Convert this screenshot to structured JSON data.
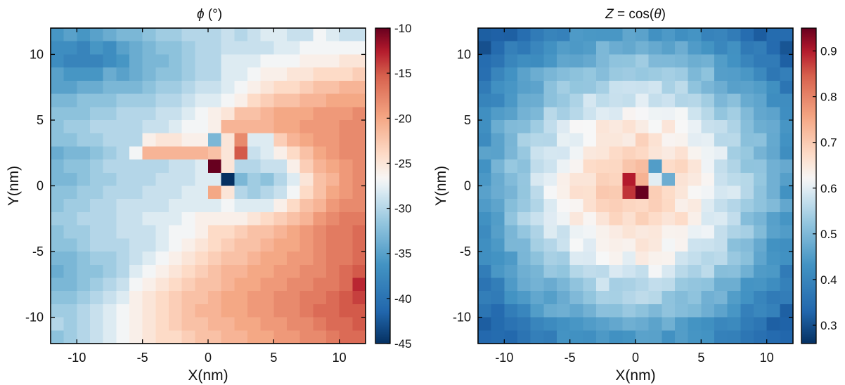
{
  "chart_data": [
    {
      "type": "heatmap",
      "title": "ϕ (°)",
      "title_parts": {
        "symbol": "ϕ",
        "rest": " (°)"
      },
      "xlabel": "X(nm)",
      "ylabel": "Y(nm)",
      "xlim": [
        -12,
        12
      ],
      "ylim": [
        -12,
        12
      ],
      "xticks": [
        -10,
        -5,
        0,
        5,
        10
      ],
      "yticks": [
        -10,
        -5,
        0,
        5,
        10
      ],
      "xtick_labels": [
        "-10",
        "-5",
        "0",
        "5",
        "10"
      ],
      "ytick_labels": [
        "-10",
        "-5",
        "0",
        "5",
        "10"
      ],
      "colorbar": {
        "range": [
          -45,
          -10
        ],
        "ticks": [
          -10,
          -15,
          -20,
          -25,
          -30,
          -35,
          -40,
          -45
        ],
        "tick_labels": [
          "-10",
          "-15",
          "-20",
          "-25",
          "-30",
          "-35",
          "-40",
          "-45"
        ],
        "colormap": "red-white-blue (diverging)"
      },
      "grid": false,
      "x_centers": [
        -11.5,
        -10.5,
        -9.5,
        -8.5,
        -7.5,
        -6.5,
        -5.5,
        -4.5,
        -3.5,
        -2.5,
        -1.5,
        -0.5,
        0.5,
        1.5,
        2.5,
        3.5,
        4.5,
        5.5,
        6.5,
        7.5,
        8.5,
        9.5,
        10.5,
        11.5
      ],
      "y_centers": [
        11.5,
        10.5,
        9.5,
        8.5,
        7.5,
        6.5,
        5.5,
        4.5,
        3.5,
        2.5,
        1.5,
        0.5,
        -0.5,
        -1.5,
        -2.5,
        -3.5,
        -4.5,
        -5.5,
        -6.5,
        -7.5,
        -8.5,
        -9.5,
        -10.5,
        -11.5
      ],
      "values": [
        [
          -36,
          -35,
          -36,
          -35,
          -34,
          -33,
          -33,
          -32,
          -31,
          -31,
          -30,
          -30,
          -30,
          -29,
          -30,
          -29,
          -28,
          -28,
          -29,
          -29,
          -27,
          -28,
          -29,
          -29
        ],
        [
          -37,
          -37,
          -38,
          -36,
          -37,
          -35,
          -34,
          -33,
          -32,
          -32,
          -31,
          -30,
          -30,
          -29,
          -29,
          -29,
          -29,
          -28,
          -28,
          -27,
          -27,
          -27,
          -27,
          -27
        ],
        [
          -37,
          -38,
          -38,
          -38,
          -37,
          -36,
          -34,
          -33,
          -33,
          -32,
          -31,
          -30,
          -30,
          -28,
          -28,
          -28,
          -27,
          -27,
          -27,
          -26,
          -26,
          -26,
          -25,
          -25
        ],
        [
          -35,
          -36,
          -36,
          -36,
          -34,
          -35,
          -34,
          -33,
          -32,
          -32,
          -31,
          -30,
          -30,
          -28,
          -28,
          -27,
          -26,
          -26,
          -25,
          -25,
          -24,
          -24,
          -24,
          -23
        ],
        [
          -35,
          -35,
          -34,
          -34,
          -33,
          -33,
          -33,
          -32,
          -31,
          -31,
          -30,
          -29,
          -29,
          -28,
          -27,
          -26,
          -25,
          -24,
          -24,
          -23,
          -22,
          -22,
          -21,
          -21
        ],
        [
          -33,
          -33,
          -32,
          -32,
          -32,
          -31,
          -31,
          -31,
          -30,
          -30,
          -29,
          -28,
          -28,
          -27,
          -26,
          -24,
          -23,
          -22,
          -22,
          -21,
          -21,
          -20,
          -20,
          -20
        ],
        [
          -32,
          -32,
          -32,
          -31,
          -31,
          -30,
          -30,
          -30,
          -29,
          -29,
          -28,
          -27,
          -26,
          -25,
          -22,
          -22,
          -21,
          -20,
          -20,
          -20,
          -19,
          -19,
          -19,
          -18
        ],
        [
          -32,
          -31,
          -31,
          -30,
          -30,
          -30,
          -30,
          -29,
          -29,
          -28,
          -27,
          -27,
          -26,
          -21,
          -21,
          -21,
          -21,
          -20,
          -20,
          -19,
          -19,
          -19,
          -18,
          -18
        ],
        [
          -32,
          -32,
          -31,
          -31,
          -30,
          -30,
          -30,
          -26,
          -25,
          -25,
          -26,
          -26,
          -33,
          -25,
          -18,
          -28,
          -28,
          -23,
          -21,
          -20,
          -19,
          -19,
          -18,
          -18
        ],
        [
          -34,
          -33,
          -33,
          -32,
          -31,
          -30,
          -27,
          -21,
          -21,
          -21,
          -21,
          -21,
          -22,
          -25,
          -15,
          -29,
          -28,
          -26,
          -24,
          -22,
          -20,
          -19,
          -18,
          -18
        ],
        [
          -33,
          -32,
          -32,
          -31,
          -30,
          -30,
          -30,
          -30,
          -30,
          -29,
          -29,
          -28,
          -10,
          -25,
          -30,
          -30,
          -29,
          -29,
          -26,
          -23,
          -21,
          -20,
          -19,
          -18
        ],
        [
          -33,
          -33,
          -32,
          -31,
          -31,
          -30,
          -30,
          -30,
          -29,
          -29,
          -29,
          -28,
          -28,
          -45,
          -33,
          -31,
          -32,
          -30,
          -28,
          -25,
          -22,
          -21,
          -19,
          -18
        ],
        [
          -32,
          -32,
          -31,
          -31,
          -30,
          -30,
          -30,
          -29,
          -29,
          -29,
          -28,
          -28,
          -20,
          -25,
          -30,
          -31,
          -30,
          -29,
          -27,
          -24,
          -22,
          -20,
          -19,
          -18
        ],
        [
          -32,
          -31,
          -31,
          -30,
          -30,
          -29,
          -29,
          -29,
          -29,
          -28,
          -28,
          -28,
          -28,
          -27,
          -28,
          -28,
          -28,
          -26,
          -24,
          -22,
          -21,
          -19,
          -18,
          -18
        ],
        [
          -31,
          -31,
          -30,
          -30,
          -30,
          -29,
          -29,
          -28,
          -28,
          -28,
          -27,
          -26,
          -26,
          -26,
          -26,
          -25,
          -24,
          -23,
          -22,
          -21,
          -19,
          -18,
          -17,
          -17
        ],
        [
          -32,
          -31,
          -31,
          -30,
          -30,
          -29,
          -29,
          -29,
          -28,
          -27,
          -27,
          -26,
          -24,
          -24,
          -23,
          -22,
          -22,
          -21,
          -20,
          -19,
          -18,
          -17,
          -17,
          -16
        ],
        [
          -32,
          -32,
          -31,
          -30,
          -30,
          -30,
          -29,
          -29,
          -28,
          -27,
          -26,
          -25,
          -24,
          -23,
          -22,
          -22,
          -21,
          -20,
          -20,
          -19,
          -18,
          -17,
          -17,
          -16
        ],
        [
          -33,
          -33,
          -32,
          -31,
          -31,
          -30,
          -29,
          -28,
          -27,
          -26,
          -25,
          -24,
          -23,
          -22,
          -22,
          -21,
          -20,
          -20,
          -19,
          -19,
          -18,
          -17,
          -17,
          -16
        ],
        [
          -34,
          -33,
          -32,
          -32,
          -31,
          -30,
          -28,
          -27,
          -26,
          -25,
          -24,
          -23,
          -22,
          -21,
          -21,
          -20,
          -20,
          -19,
          -19,
          -18,
          -18,
          -17,
          -16,
          -15
        ],
        [
          -33,
          -33,
          -32,
          -31,
          -30,
          -29,
          -27,
          -26,
          -25,
          -24,
          -23,
          -22,
          -22,
          -21,
          -20,
          -20,
          -19,
          -19,
          -18,
          -18,
          -17,
          -17,
          -16,
          -13
        ],
        [
          -32,
          -32,
          -31,
          -30,
          -29,
          -28,
          -26,
          -25,
          -24,
          -23,
          -22,
          -22,
          -21,
          -20,
          -20,
          -19,
          -19,
          -18,
          -18,
          -17,
          -17,
          -16,
          -15,
          -14
        ],
        [
          -31,
          -31,
          -30,
          -29,
          -28,
          -27,
          -26,
          -25,
          -24,
          -23,
          -22,
          -21,
          -21,
          -20,
          -20,
          -19,
          -19,
          -18,
          -18,
          -17,
          -16,
          -16,
          -15,
          -15
        ],
        [
          -30,
          -31,
          -30,
          -29,
          -28,
          -27,
          -26,
          -25,
          -24,
          -23,
          -22,
          -22,
          -21,
          -21,
          -20,
          -20,
          -19,
          -19,
          -18,
          -18,
          -17,
          -16,
          -16,
          -15
        ],
        [
          -32,
          -31,
          -30,
          -29,
          -28,
          -27,
          -26,
          -25,
          -24,
          -24,
          -23,
          -22,
          -22,
          -21,
          -21,
          -20,
          -20,
          -19,
          -19,
          -18,
          -18,
          -17,
          -16,
          -16
        ]
      ]
    },
    {
      "type": "heatmap",
      "title": "Z = cos(θ)",
      "title_parts": {
        "symbol": "Z",
        "mid": " = cos(",
        "symbol2": "θ",
        "rest": ")"
      },
      "xlabel": "X(nm)",
      "ylabel": "Y(nm)",
      "xlim": [
        -12,
        12
      ],
      "ylim": [
        -12,
        12
      ],
      "xticks": [
        -10,
        -5,
        0,
        5,
        10
      ],
      "yticks": [
        -10,
        -5,
        0,
        5,
        10
      ],
      "xtick_labels": [
        "-10",
        "-5",
        "0",
        "5",
        "10"
      ],
      "ytick_labels": [
        "-10",
        "-5",
        "0",
        "5",
        "10"
      ],
      "colorbar": {
        "range": [
          0.26,
          0.95
        ],
        "ticks": [
          0.9,
          0.8,
          0.7,
          0.6,
          0.5,
          0.4,
          0.3
        ],
        "tick_labels": [
          "0.9",
          "0.8",
          "0.7",
          "0.6",
          "0.5",
          "0.4",
          "0.3"
        ],
        "colormap": "red-white-blue (diverging)"
      },
      "grid": false,
      "description_of_pattern": "radially symmetric: ~0.65-0.72 near center, decreasing to ~0.32 at corners; hotspot 0.95 at (-0.5,0.5)-(0.5,-0.5), blue specks at (1.5,1.5) and (2.5,0.5)",
      "center_value": 0.72,
      "edge_value": 0.32,
      "hotspots": [
        {
          "x": -0.5,
          "y": 0.5,
          "value": 0.9
        },
        {
          "x": -0.5,
          "y": -0.5,
          "value": 0.88
        },
        {
          "x": 0.5,
          "y": -0.5,
          "value": 0.95
        },
        {
          "x": 1.5,
          "y": 1.5,
          "value": 0.45
        },
        {
          "x": 2.5,
          "y": 0.5,
          "value": 0.48
        },
        {
          "x": 1.5,
          "y": 0.5,
          "value": 0.6
        }
      ]
    }
  ]
}
